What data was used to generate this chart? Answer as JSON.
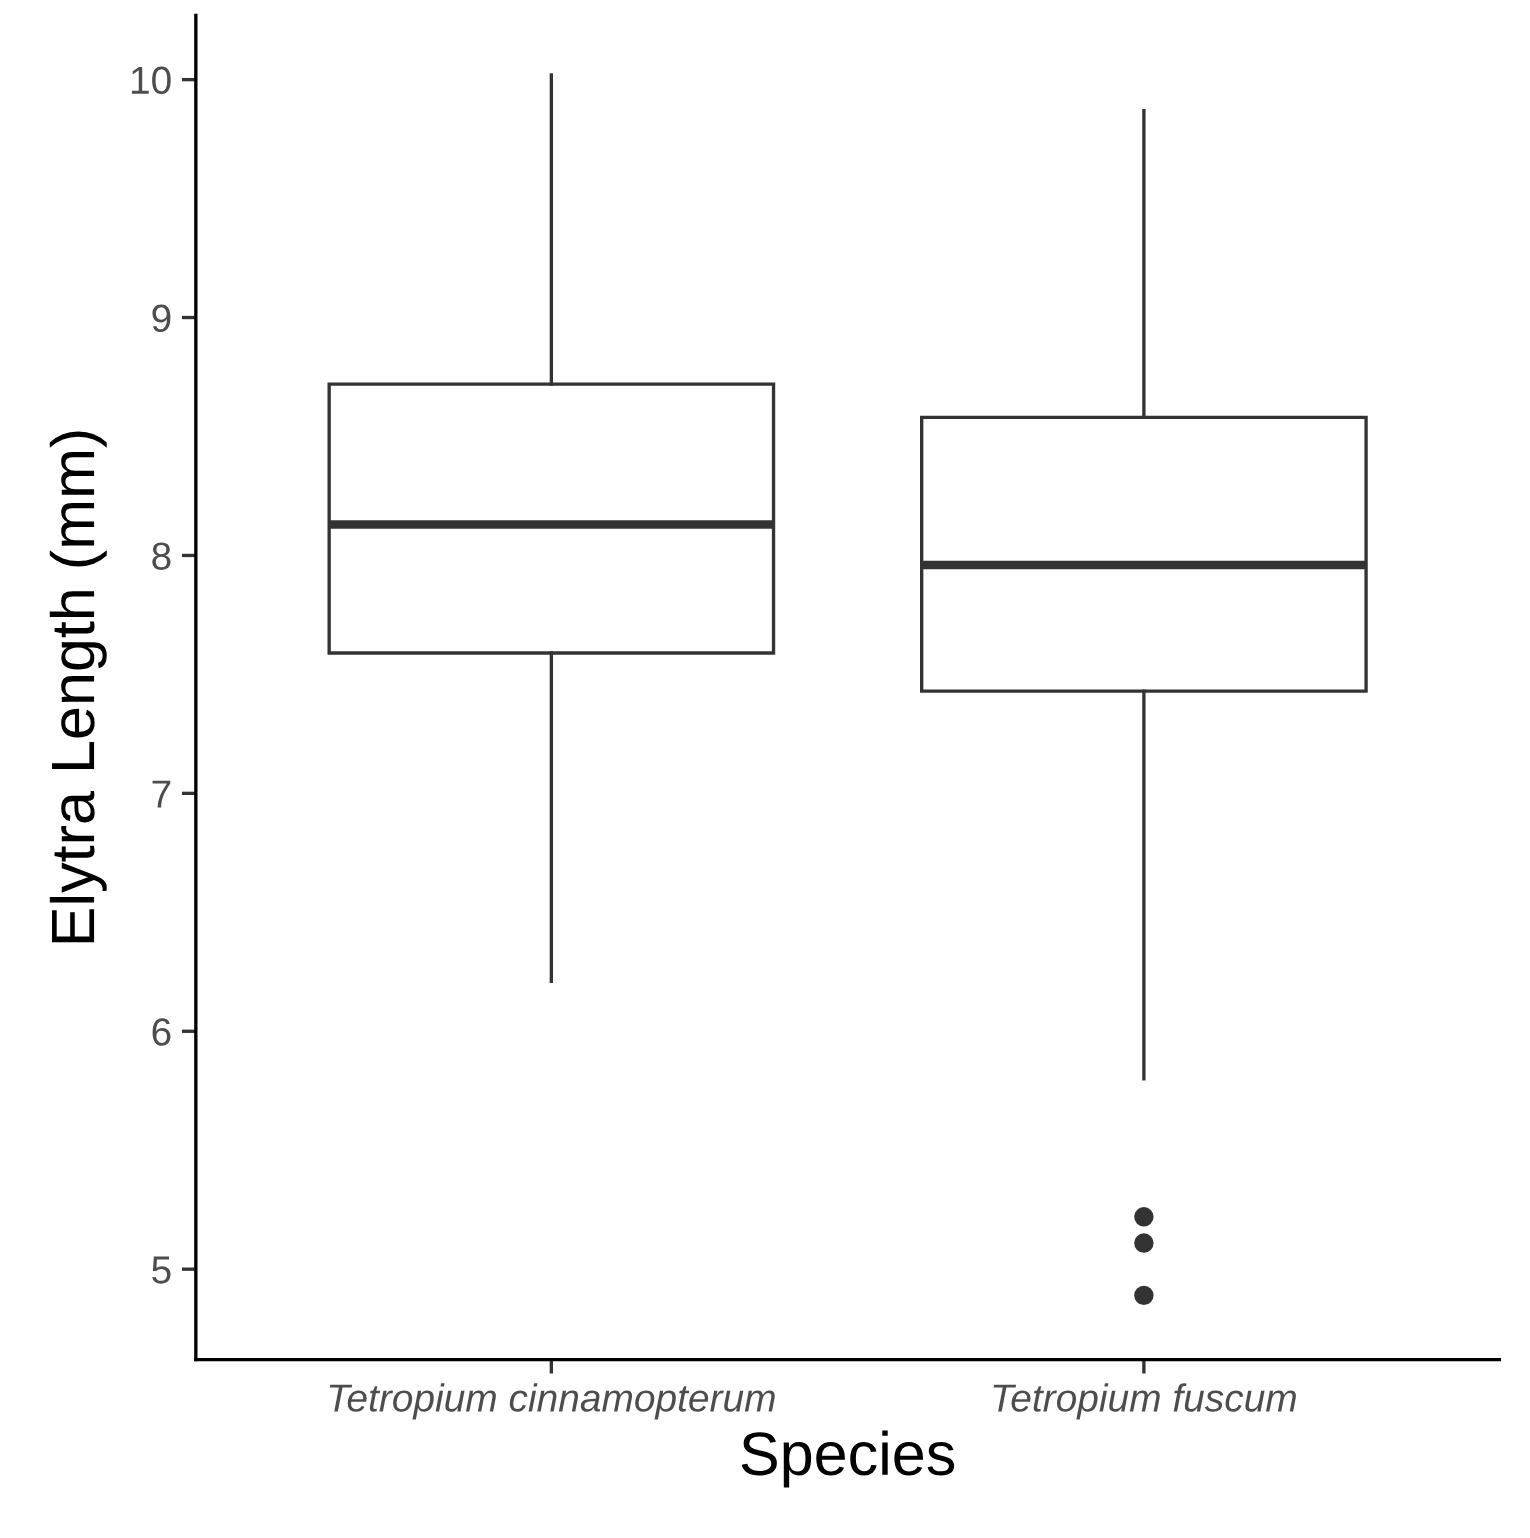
{
  "chart_data": {
    "type": "box",
    "xlabel": "Species",
    "ylabel": "Elytra Length (mm)",
    "categories": [
      "Tetropium cinnamopterum",
      "Tetropium fuscum"
    ],
    "boxes": [
      {
        "low": 6.21,
        "q1": 7.59,
        "median": 8.13,
        "q3": 8.72,
        "high": 10.02
      },
      {
        "low": 5.8,
        "q1": 7.43,
        "median": 7.96,
        "q3": 8.58,
        "high": 9.87,
        "outliers": [
          5.22,
          5.11,
          4.89
        ]
      }
    ],
    "ylim": [
      4.62,
      10.27
    ],
    "yticks": [
      5,
      6,
      7,
      8,
      9,
      10
    ],
    "grid": false
  }
}
